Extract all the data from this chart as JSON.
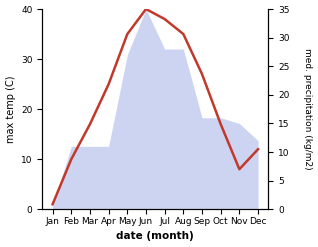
{
  "months": [
    "Jan",
    "Feb",
    "Mar",
    "Apr",
    "May",
    "Jun",
    "Jul",
    "Aug",
    "Sep",
    "Oct",
    "Nov",
    "Dec"
  ],
  "temperature": [
    1,
    10,
    17,
    25,
    35,
    40,
    38,
    35,
    27,
    17,
    8,
    12
  ],
  "precipitation": [
    0.5,
    11,
    11,
    11,
    27,
    35,
    28,
    28,
    16,
    16,
    15,
    12
  ],
  "temp_color": "#c0392b",
  "precip_fill_color": "#c5cdf0",
  "precip_alpha": 0.85,
  "temp_ylim": [
    0,
    40
  ],
  "precip_ylim": [
    0,
    35
  ],
  "temp_yticks": [
    0,
    10,
    20,
    30,
    40
  ],
  "precip_yticks": [
    0,
    5,
    10,
    15,
    20,
    25,
    30,
    35
  ],
  "ylabel_left": "max temp (C)",
  "ylabel_right": "med. precipitation (kg/m2)",
  "xlabel": "date (month)",
  "bg_color": "#f0f0f0",
  "fig_width": 3.18,
  "fig_height": 2.47,
  "dpi": 100
}
